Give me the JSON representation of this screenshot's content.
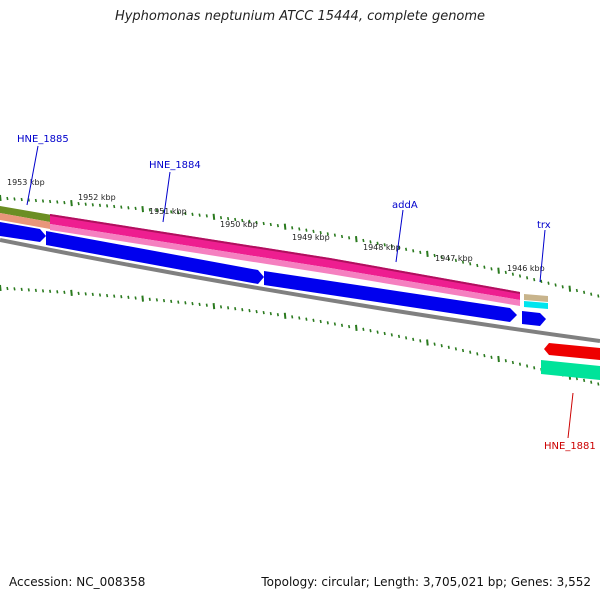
{
  "title": "Hyphomonas neptunium ATCC 15444, complete genome",
  "footer": {
    "accession": "Accession: NC_008358",
    "topology": "Topology: circular; Length: 3,705,021 bp; Genes: 3,552"
  },
  "scale_labels": [
    "1953 kbp",
    "1952 kbp",
    "1951 kbp",
    "1950 kbp",
    "1949 kbp",
    "1948 kbp",
    "1947 kbp",
    "1946 kbp"
  ],
  "gene_labels": [
    {
      "name": "HNE_1885",
      "color": "#0000cc"
    },
    {
      "name": "HNE_1884",
      "color": "#0000cc"
    },
    {
      "name": "addA",
      "color": "#0000cc"
    },
    {
      "name": "trx",
      "color": "#0000cc"
    },
    {
      "name": "HNE_1881",
      "color": "#cc0000"
    }
  ],
  "colors": {
    "tick": "#2a7a1e",
    "forward_cds": "#0000ee",
    "reverse_cds": "#ee0000",
    "gene_band": "#ee1e90",
    "backbone": "#808080",
    "olive_band": "#6b8e23",
    "green_cds": "#00e39a",
    "cyan_cds": "#00e5ee"
  }
}
